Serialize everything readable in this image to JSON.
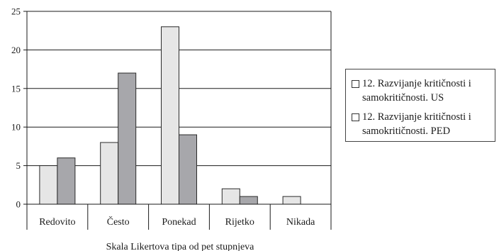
{
  "chart_data": {
    "type": "bar",
    "categories": [
      "Redovito",
      "Često",
      "Ponekad",
      "Rijetko",
      "Nikada"
    ],
    "series": [
      {
        "name": "12. Razvijanje kritičnosti i samokritičnosti. US",
        "values": [
          5,
          8,
          23,
          2,
          1
        ],
        "color": "#e6e6e6"
      },
      {
        "name": "12. Razvijanje kritičnosti i samokritičnosti. PED",
        "values": [
          6,
          17,
          9,
          1,
          0
        ],
        "color": "#a7a7ab"
      }
    ],
    "title": "",
    "xlabel": "Skala Likertova tipa od pet stupnjeva",
    "ylabel": "",
    "ylim": [
      0,
      25
    ],
    "yticks": [
      0,
      5,
      10,
      15,
      20,
      25
    ],
    "grid": true,
    "legend": "right"
  }
}
